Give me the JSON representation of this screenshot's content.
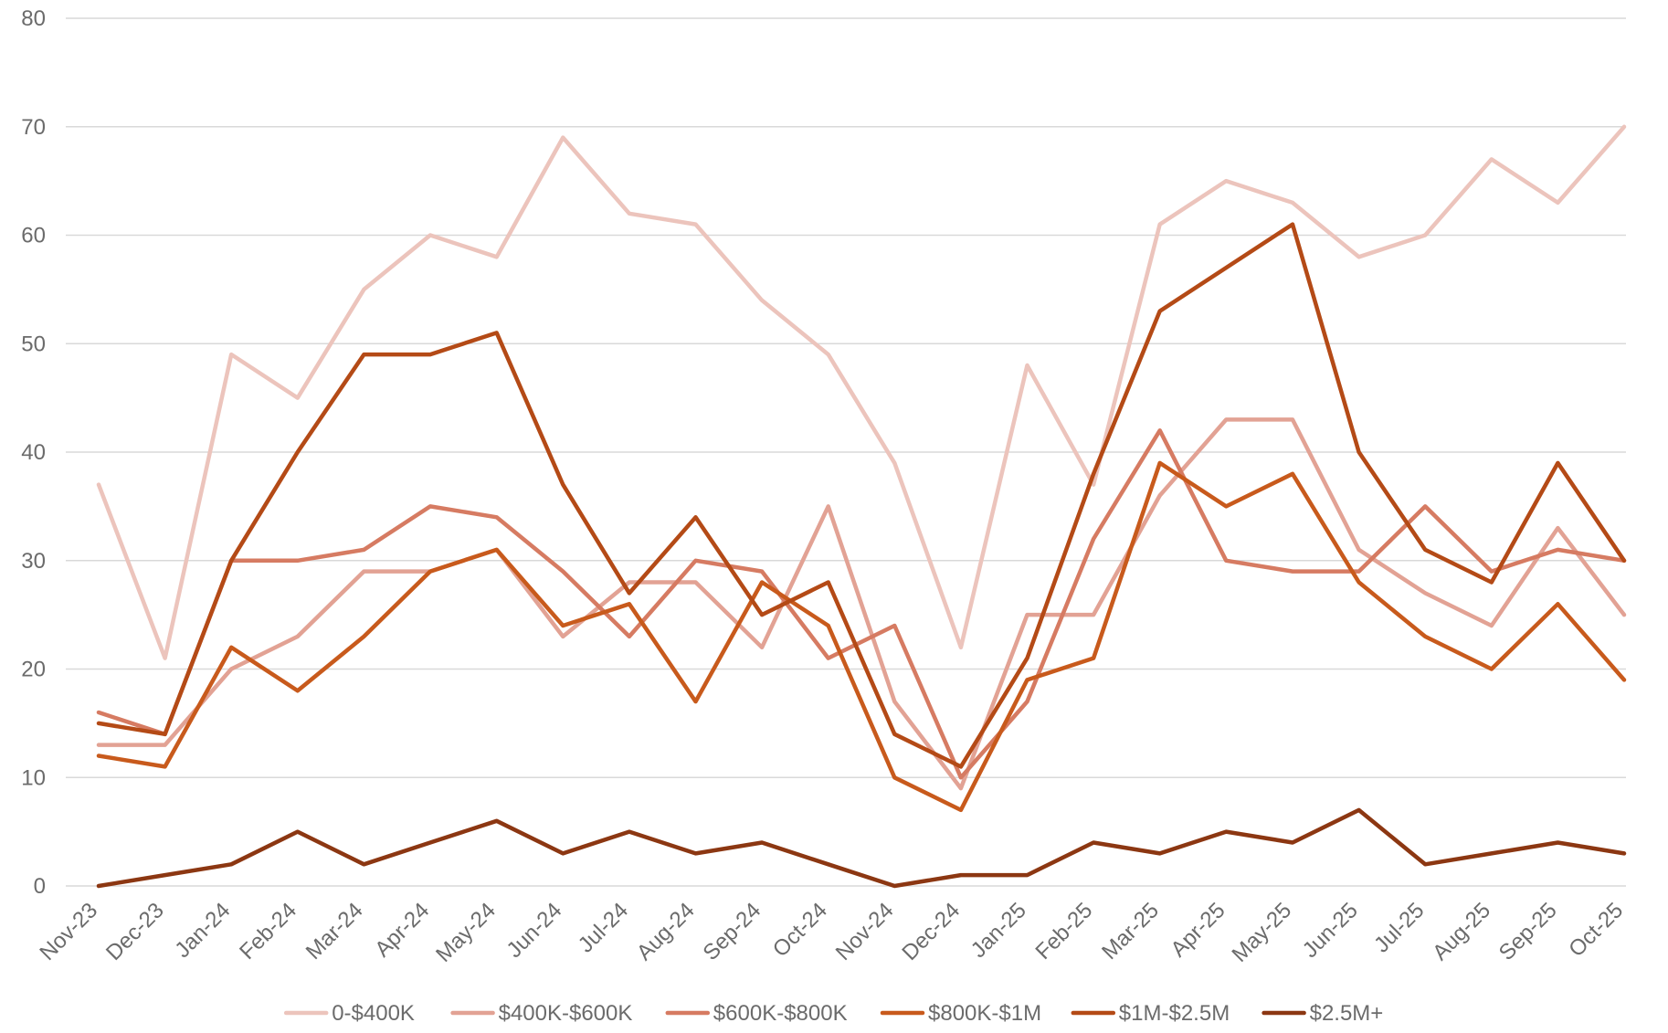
{
  "chart_data": {
    "type": "line",
    "title": "",
    "xlabel": "",
    "ylabel": "",
    "ylim": [
      0,
      80
    ],
    "yticks": [
      0,
      10,
      20,
      30,
      40,
      50,
      60,
      70,
      80
    ],
    "grid": "horizontal",
    "legend_position": "bottom",
    "categories": [
      "Nov-23",
      "Dec-23",
      "Jan-24",
      "Feb-24",
      "Mar-24",
      "Apr-24",
      "May-24",
      "Jun-24",
      "Jul-24",
      "Aug-24",
      "Sep-24",
      "Oct-24",
      "Nov-24",
      "Dec-24",
      "Jan-25",
      "Feb-25",
      "Mar-25",
      "Apr-25",
      "May-25",
      "Jun-25",
      "Jul-25",
      "Aug-25",
      "Sep-25",
      "Oct-25"
    ],
    "series": [
      {
        "name": "0-$400K",
        "color": "#ecc4bc",
        "values": [
          37,
          21,
          49,
          45,
          55,
          60,
          58,
          69,
          62,
          61,
          54,
          49,
          39,
          22,
          48,
          37,
          61,
          65,
          63,
          58,
          60,
          67,
          63,
          70
        ]
      },
      {
        "name": "$400K-$600K",
        "color": "#e2a294",
        "values": [
          13,
          13,
          20,
          23,
          29,
          29,
          31,
          23,
          28,
          28,
          22,
          35,
          17,
          9,
          25,
          25,
          36,
          43,
          43,
          31,
          27,
          24,
          33,
          25
        ]
      },
      {
        "name": "$600K-$800K",
        "color": "#d67b62",
        "values": [
          16,
          14,
          30,
          30,
          31,
          35,
          34,
          29,
          23,
          30,
          29,
          21,
          24,
          10,
          17,
          32,
          42,
          30,
          29,
          29,
          35,
          29,
          31,
          30
        ]
      },
      {
        "name": "$800K-$1M",
        "color": "#c85a1c",
        "values": [
          12,
          11,
          22,
          18,
          23,
          29,
          31,
          24,
          26,
          17,
          28,
          24,
          10,
          7,
          19,
          21,
          39,
          35,
          38,
          28,
          23,
          20,
          26,
          19
        ]
      },
      {
        "name": "$1M-$2.5M",
        "color": "#b44a16",
        "values": [
          15,
          14,
          30,
          40,
          49,
          49,
          51,
          37,
          27,
          34,
          25,
          28,
          14,
          11,
          21,
          38,
          53,
          57,
          61,
          40,
          31,
          28,
          39,
          30
        ]
      },
      {
        "name": "$2.5M+",
        "color": "#8c3712",
        "values": [
          0,
          1,
          2,
          5,
          2,
          4,
          6,
          3,
          5,
          3,
          4,
          2,
          0,
          1,
          1,
          4,
          3,
          5,
          4,
          7,
          2,
          3,
          4,
          3
        ]
      }
    ]
  }
}
